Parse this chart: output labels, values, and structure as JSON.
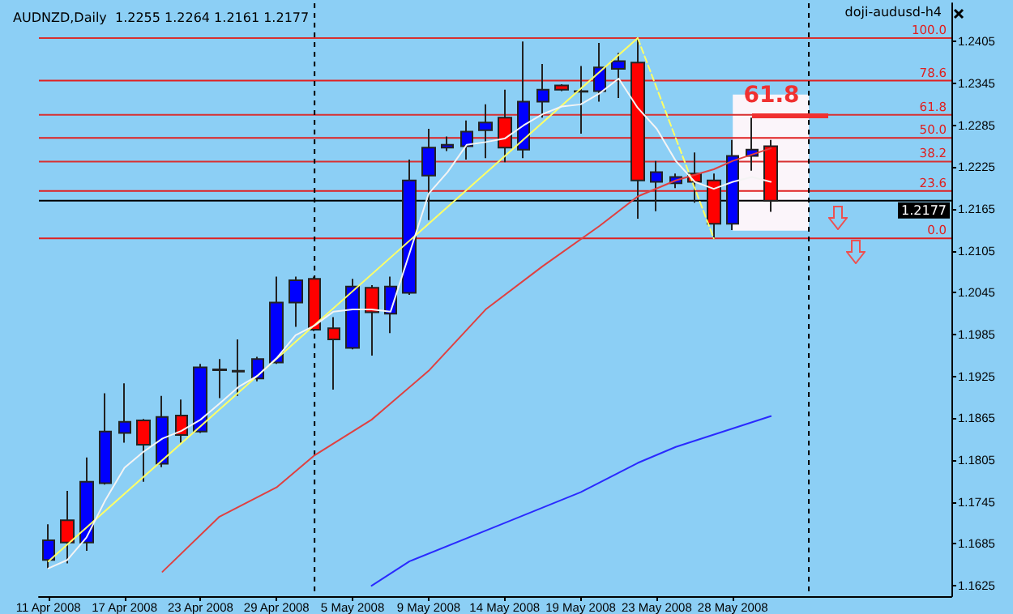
{
  "chart_data": {
    "type": "candlestick",
    "title": "AUDNZD,Daily  1.2255 1.2264 1.2161 1.2177",
    "categories": [
      "11 Apr 2008",
      null,
      null,
      null,
      "17 Apr 2008",
      null,
      null,
      null,
      "23 Apr 2008",
      null,
      null,
      null,
      "29 Apr 2008",
      null,
      null,
      null,
      "5 May 2008",
      null,
      null,
      null,
      "9 May 2008",
      null,
      null,
      null,
      "14 May 2008",
      null,
      null,
      null,
      "19 May 2008",
      null,
      null,
      null,
      "23 May 2008",
      null,
      null,
      null,
      "28 May 2008",
      null,
      null,
      null,
      null,
      null,
      null,
      null,
      null,
      null,
      null,
      null
    ],
    "ylim": [
      1.161,
      1.246
    ],
    "yticks": [
      1.1625,
      1.1685,
      1.1745,
      1.1805,
      1.1865,
      1.1925,
      1.1985,
      1.2045,
      1.2105,
      1.2165,
      1.2225,
      1.2285,
      1.2345,
      1.2405
    ],
    "series": [
      {
        "type": "line",
        "color": "#2a2aff",
        "values": [
          null,
          null,
          null,
          null,
          null,
          null,
          null,
          null,
          null,
          null,
          null,
          null,
          null,
          null,
          null,
          null,
          null,
          1.1625,
          null,
          1.166,
          null,
          null,
          null,
          null,
          1.1715,
          null,
          null,
          null,
          1.1759,
          null,
          null,
          1.1801,
          null,
          1.1824,
          null,
          null,
          null,
          null,
          1.1868,
          null,
          null,
          null,
          null,
          null,
          null,
          null,
          null,
          null
        ]
      },
      {
        "type": "line",
        "color": "#e04040",
        "values": [
          null,
          null,
          null,
          null,
          null,
          null,
          1.1645,
          null,
          null,
          1.1724,
          null,
          null,
          1.1766,
          null,
          1.1812,
          null,
          null,
          1.1863,
          null,
          null,
          1.1933,
          null,
          null,
          1.2021,
          null,
          null,
          1.2083,
          null,
          null,
          1.2141,
          null,
          1.2183,
          null,
          1.2206,
          null,
          1.2222,
          1.2234,
          null,
          1.2252,
          null,
          null,
          null,
          null,
          null,
          null,
          null,
          null,
          null
        ]
      },
      {
        "type": "line",
        "color": "#ffff66",
        "values": [
          1.166,
          null,
          null,
          null,
          null,
          null,
          null,
          null,
          null,
          null,
          null,
          null,
          null,
          null,
          null,
          null,
          null,
          null,
          null,
          null,
          null,
          null,
          null,
          null,
          null,
          null,
          null,
          null,
          null,
          null,
          null,
          1.241,
          null,
          null,
          null,
          null,
          null,
          null,
          null,
          null,
          null,
          null,
          null,
          null,
          null,
          null,
          null,
          null
        ]
      },
      {
        "type": "line",
        "color": "#ffff66",
        "line_style": "dashed",
        "values": [
          null,
          null,
          null,
          null,
          null,
          null,
          null,
          null,
          null,
          null,
          null,
          null,
          null,
          null,
          null,
          null,
          null,
          null,
          null,
          null,
          null,
          null,
          null,
          null,
          null,
          null,
          null,
          null,
          null,
          null,
          null,
          1.241,
          null,
          null,
          null,
          1.2123,
          null,
          null,
          null,
          null,
          null,
          null,
          null,
          null,
          null,
          null,
          null,
          null
        ]
      },
      {
        "type": "line",
        "color": "#f4f4f4",
        "values": [
          1.165,
          1.1662,
          1.1694,
          1.1748,
          1.1794,
          1.1817,
          1.1836,
          1.1847,
          1.1863,
          1.1886,
          1.191,
          1.1926,
          1.1951,
          1.1984,
          1.1998,
          1.2018,
          1.2021,
          1.2021,
          1.2018,
          1.2102,
          1.2187,
          1.2218,
          1.2257,
          1.2261,
          1.2266,
          1.2285,
          1.2301,
          1.2312,
          1.2315,
          1.2331,
          1.2352,
          1.231,
          1.228,
          1.2234,
          1.2204,
          1.2194,
          1.2204,
          1.2211,
          1.2204,
          null,
          null,
          null,
          null,
          null,
          null,
          null,
          null,
          null
        ]
      },
      {
        "ohlc": [
          [
            1.1662,
            1.1713,
            1.165,
            1.169
          ],
          [
            1.1719,
            1.1761,
            1.1657,
            1.1687
          ],
          [
            1.1687,
            1.1809,
            1.1675,
            1.1774
          ],
          [
            1.1772,
            1.1901,
            1.177,
            1.1846
          ],
          [
            1.1844,
            1.1915,
            1.183,
            1.186
          ],
          [
            1.1862,
            1.1864,
            1.1774,
            1.1827
          ],
          [
            1.18,
            1.1897,
            1.1795,
            1.1867
          ],
          [
            1.1869,
            1.1892,
            1.183,
            1.1841
          ],
          [
            1.1846,
            1.1943,
            1.1844,
            1.1938
          ],
          [
            1.1934,
            1.195,
            1.1894,
            1.1935
          ],
          [
            1.1932,
            1.1978,
            1.1897,
            1.1933
          ],
          [
            1.1922,
            1.1953,
            1.1918,
            1.195
          ],
          [
            1.1945,
            1.2068,
            1.1943,
            1.2031
          ],
          [
            1.2031,
            1.2068,
            1.1996,
            1.2063
          ],
          [
            1.2065,
            1.2068,
            1.199,
            1.1992
          ],
          [
            1.1994,
            1.201,
            1.1906,
            1.1978
          ],
          [
            1.1966,
            1.2065,
            1.1964,
            1.2054
          ],
          [
            1.2052,
            1.2056,
            1.1955,
            1.2017
          ],
          [
            1.2015,
            1.2068,
            1.1987,
            1.2054
          ],
          [
            1.2045,
            1.2236,
            1.2042,
            1.2206
          ],
          [
            1.2213,
            1.228,
            1.2149,
            1.2253
          ],
          [
            1.2253,
            1.2269,
            1.2248,
            1.2257
          ],
          [
            1.2255,
            1.2292,
            1.2236,
            1.2276
          ],
          [
            1.2278,
            1.2315,
            1.2238,
            1.2289
          ],
          [
            1.2296,
            1.2336,
            1.2232,
            1.2253
          ],
          [
            1.225,
            1.2405,
            1.2238,
            1.2319
          ],
          [
            1.2319,
            1.2373,
            1.2296,
            1.2336
          ],
          [
            1.2342,
            1.2344,
            1.2334,
            1.2336
          ],
          [
            1.2333,
            1.237,
            1.2273,
            1.2334
          ],
          [
            1.2334,
            1.2403,
            1.2319,
            1.2368
          ],
          [
            1.2366,
            1.2389,
            1.2324,
            1.2377
          ],
          [
            1.2375,
            1.241,
            1.2151,
            1.2206
          ],
          [
            1.2204,
            1.2234,
            1.2162,
            1.2218
          ],
          [
            1.2202,
            1.2216,
            1.2195,
            1.2211
          ],
          [
            1.2216,
            1.2246,
            1.2174,
            1.2204
          ],
          [
            1.2206,
            1.2216,
            1.2123,
            1.2144
          ],
          [
            1.2144,
            1.2264,
            1.2135,
            1.2241
          ],
          [
            1.2241,
            1.2296,
            1.222,
            1.225
          ],
          [
            1.2255,
            1.2264,
            1.2161,
            1.2177
          ],
          null,
          null,
          null,
          null,
          null,
          null,
          null,
          null,
          null
        ],
        "colors": [
          "#0000ff",
          "#ff0000",
          "#0000ff",
          "#0000ff",
          "#0000ff",
          "#ff0000",
          "#0000ff",
          "#ff0000",
          "#0000ff",
          "#000000",
          "#000000",
          "#0000ff",
          "#0000ff",
          "#0000ff",
          "#ff0000",
          "#ff0000",
          "#0000ff",
          "#ff0000",
          "#0000ff",
          "#0000ff",
          "#0000ff",
          "#0000ff",
          "#0000ff",
          "#0000ff",
          "#ff0000",
          "#0000ff",
          "#0000ff",
          "#ff0000",
          "#000000",
          "#0000ff",
          "#0000ff",
          "#ff0000",
          "#0000ff",
          "#0000ff",
          "#ff0000",
          "#ff0000",
          "#0000ff",
          "#0000ff",
          "#ff0000",
          null,
          null,
          null,
          null,
          null,
          null,
          null,
          null,
          null
        ]
      }
    ],
    "ref_lines": [
      {
        "axis": "y",
        "value": 1.2123,
        "color": "#e02020"
      },
      {
        "axis": "y",
        "value": 1.2191,
        "color": "#e02020"
      },
      {
        "axis": "y",
        "value": 1.2233,
        "color": "#d83030"
      },
      {
        "axis": "y",
        "value": 1.2267,
        "color": "#e02020"
      },
      {
        "axis": "y",
        "value": 1.23,
        "color": "#d83030"
      },
      {
        "axis": "y",
        "value": 1.2349,
        "color": "#e02020"
      },
      {
        "axis": "y",
        "value": 1.241,
        "color": "#d83030"
      },
      {
        "axis": "y",
        "value": 1.2177,
        "label": "1.2177",
        "color": "#000000"
      }
    ],
    "annotations": [
      "doji-audusd-h4",
      "61.8",
      {
        "text": "0.0",
        "y": 1.2123
      },
      {
        "text": "23.6",
        "y": 1.2191
      },
      {
        "text": "38.2",
        "y": 1.2233
      },
      {
        "text": "50.0",
        "y": 1.2267
      },
      {
        "text": "61.8",
        "y": 1.23
      },
      {
        "text": "78.6",
        "y": 1.2349
      },
      {
        "text": "100.0",
        "y": 1.241
      }
    ]
  }
}
